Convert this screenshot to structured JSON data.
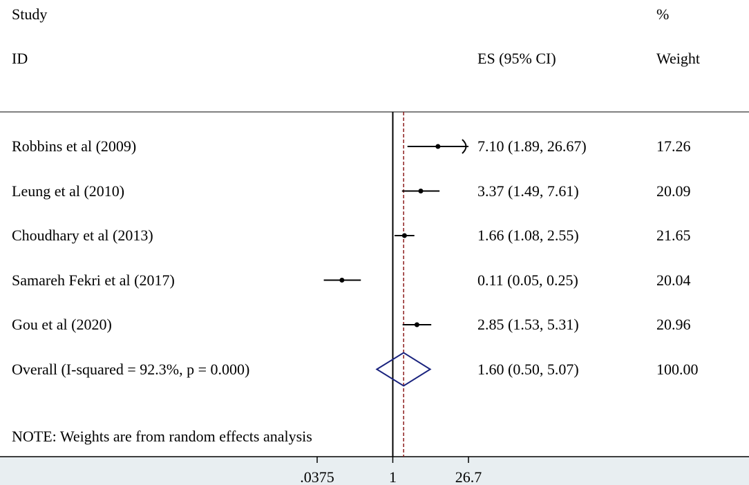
{
  "headers": {
    "study_line1": "Study",
    "study_line2": "ID",
    "es_line": "ES (95% CI)",
    "weight_line1": "%",
    "weight_line2": "Weight"
  },
  "note": "NOTE: Weights are from random effects analysis",
  "colors": {
    "marker": "#000000",
    "diamond": "#1a237e",
    "null_line": "#000000",
    "overall_line": "#8b1a1a",
    "axis_strip": "#e8eef1"
  },
  "chart_data": {
    "type": "forest",
    "x_scale": "log",
    "xlim": [
      0.0375,
      26.7
    ],
    "null_value": 1,
    "x_ticks": [
      {
        "value": 0.0375,
        "label": ".0375"
      },
      {
        "value": 1,
        "label": "1"
      },
      {
        "value": 26.7,
        "label": "26.7"
      }
    ],
    "studies": [
      {
        "label": "Robbins et al (2009)",
        "es": 7.1,
        "lo": 1.89,
        "hi": 26.67,
        "es_text": "7.10 (1.89, 26.67)",
        "weight": "17.26",
        "truncated_hi": true
      },
      {
        "label": "Leung et al (2010)",
        "es": 3.37,
        "lo": 1.49,
        "hi": 7.61,
        "es_text": "3.37 (1.49, 7.61)",
        "weight": "20.09",
        "truncated_hi": false
      },
      {
        "label": "Choudhary et al (2013)",
        "es": 1.66,
        "lo": 1.08,
        "hi": 2.55,
        "es_text": "1.66 (1.08, 2.55)",
        "weight": "21.65",
        "truncated_hi": false
      },
      {
        "label": "Samareh Fekri et al (2017)",
        "es": 0.11,
        "lo": 0.05,
        "hi": 0.25,
        "es_text": "0.11 (0.05, 0.25)",
        "weight": "20.04",
        "truncated_hi": false
      },
      {
        "label": "Gou et al (2020)",
        "es": 2.85,
        "lo": 1.53,
        "hi": 5.31,
        "es_text": "2.85 (1.53, 5.31)",
        "weight": "20.96",
        "truncated_hi": false
      }
    ],
    "overall": {
      "label": "Overall  (I-squared = 92.3%, p = 0.000)",
      "es": 1.6,
      "lo": 0.5,
      "hi": 5.07,
      "es_text": "1.60 (0.50, 5.07)",
      "weight": "100.00"
    }
  }
}
